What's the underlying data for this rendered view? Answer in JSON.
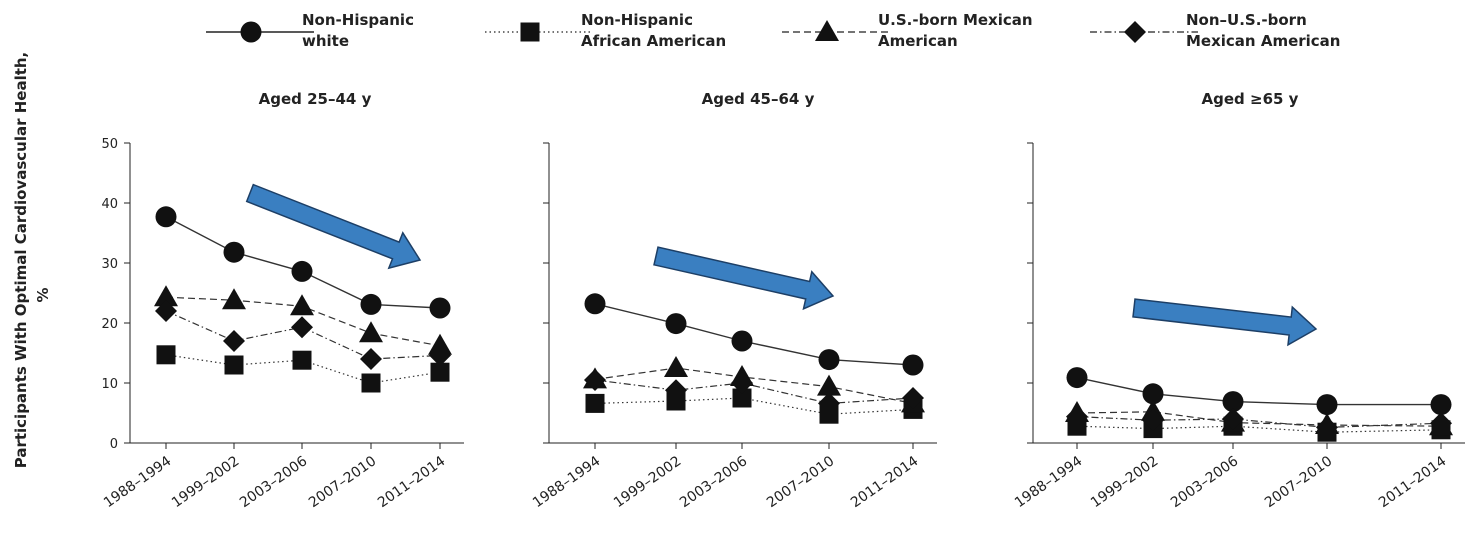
{
  "chart_data": {
    "type": "line",
    "ylabel": "Participants With Optimal Cardiovascular Health, %",
    "ylim": [
      0,
      50
    ],
    "yticks": [
      0,
      10,
      20,
      30,
      40,
      50
    ],
    "categories": [
      "1988–1994",
      "1999–2002",
      "2003–2006",
      "2007–2010",
      "2011–2014"
    ],
    "legend_position": "top",
    "series_styles": [
      {
        "name": "Non-Hispanic white",
        "line_style": "solid",
        "marker": "circle"
      },
      {
        "name": "Non-Hispanic African American",
        "line_style": "dotted",
        "marker": "square"
      },
      {
        "name": "U.S.-born Mexican American",
        "line_style": "dashed",
        "marker": "triangle"
      },
      {
        "name": "Non–U.S.-born Mexican American",
        "line_style": "dash-dot",
        "marker": "diamond"
      }
    ],
    "legend": [
      {
        "lines": [
          "Non-Hispanic",
          "white"
        ]
      },
      {
        "lines": [
          "Non-Hispanic",
          "African American"
        ]
      },
      {
        "lines": [
          "U.S.-born Mexican",
          "American"
        ]
      },
      {
        "lines": [
          "Non–U.S.-born",
          "Mexican American"
        ]
      }
    ],
    "panels": [
      {
        "title": "Aged 25–44 y",
        "series": [
          {
            "name": "Non-Hispanic white",
            "values": [
              37.7,
              31.8,
              28.6,
              23.1,
              22.5
            ]
          },
          {
            "name": "Non-Hispanic African American",
            "values": [
              14.7,
              13.0,
              13.8,
              10.0,
              11.8
            ]
          },
          {
            "name": "U.S.-born Mexican American",
            "values": [
              24.3,
              23.8,
              22.8,
              18.3,
              16.2
            ]
          },
          {
            "name": "Non–U.S.-born Mexican American",
            "values": [
              22.0,
              17.0,
              19.3,
              14.0,
              14.6
            ]
          }
        ]
      },
      {
        "title": "Aged 45–64 y",
        "series": [
          {
            "name": "Non-Hispanic white",
            "values": [
              23.2,
              19.9,
              17.0,
              13.9,
              13.0
            ]
          },
          {
            "name": "Non-Hispanic African American",
            "values": [
              6.6,
              7.0,
              7.5,
              4.8,
              5.6
            ]
          },
          {
            "name": "U.S.-born Mexican American",
            "values": [
              10.6,
              12.5,
              11.0,
              9.4,
              6.6
            ]
          },
          {
            "name": "Non–U.S.-born Mexican American",
            "values": [
              10.5,
              8.8,
              10.0,
              6.6,
              7.5
            ]
          }
        ]
      },
      {
        "title": "Aged ≥65 y",
        "series": [
          {
            "name": "Non-Hispanic white",
            "values": [
              10.9,
              8.2,
              6.9,
              6.4,
              6.4
            ]
          },
          {
            "name": "Non-Hispanic African American",
            "values": [
              2.8,
              2.4,
              2.8,
              1.8,
              2.2
            ]
          },
          {
            "name": "U.S.-born Mexican American",
            "values": [
              5.0,
              5.2,
              3.4,
              3.0,
              2.8
            ]
          },
          {
            "name": "Non–U.S.-born Mexican American",
            "values": [
              4.4,
              3.8,
              4.0,
              2.6,
              3.3
            ]
          }
        ]
      }
    ],
    "annotations": [
      {
        "type": "arrow",
        "color": "#3a7fc1",
        "direction": "downward trend"
      },
      {
        "type": "arrow",
        "color": "#3a7fc1",
        "direction": "downward trend"
      },
      {
        "type": "arrow",
        "color": "#3a7fc1",
        "direction": "downward trend"
      }
    ]
  }
}
